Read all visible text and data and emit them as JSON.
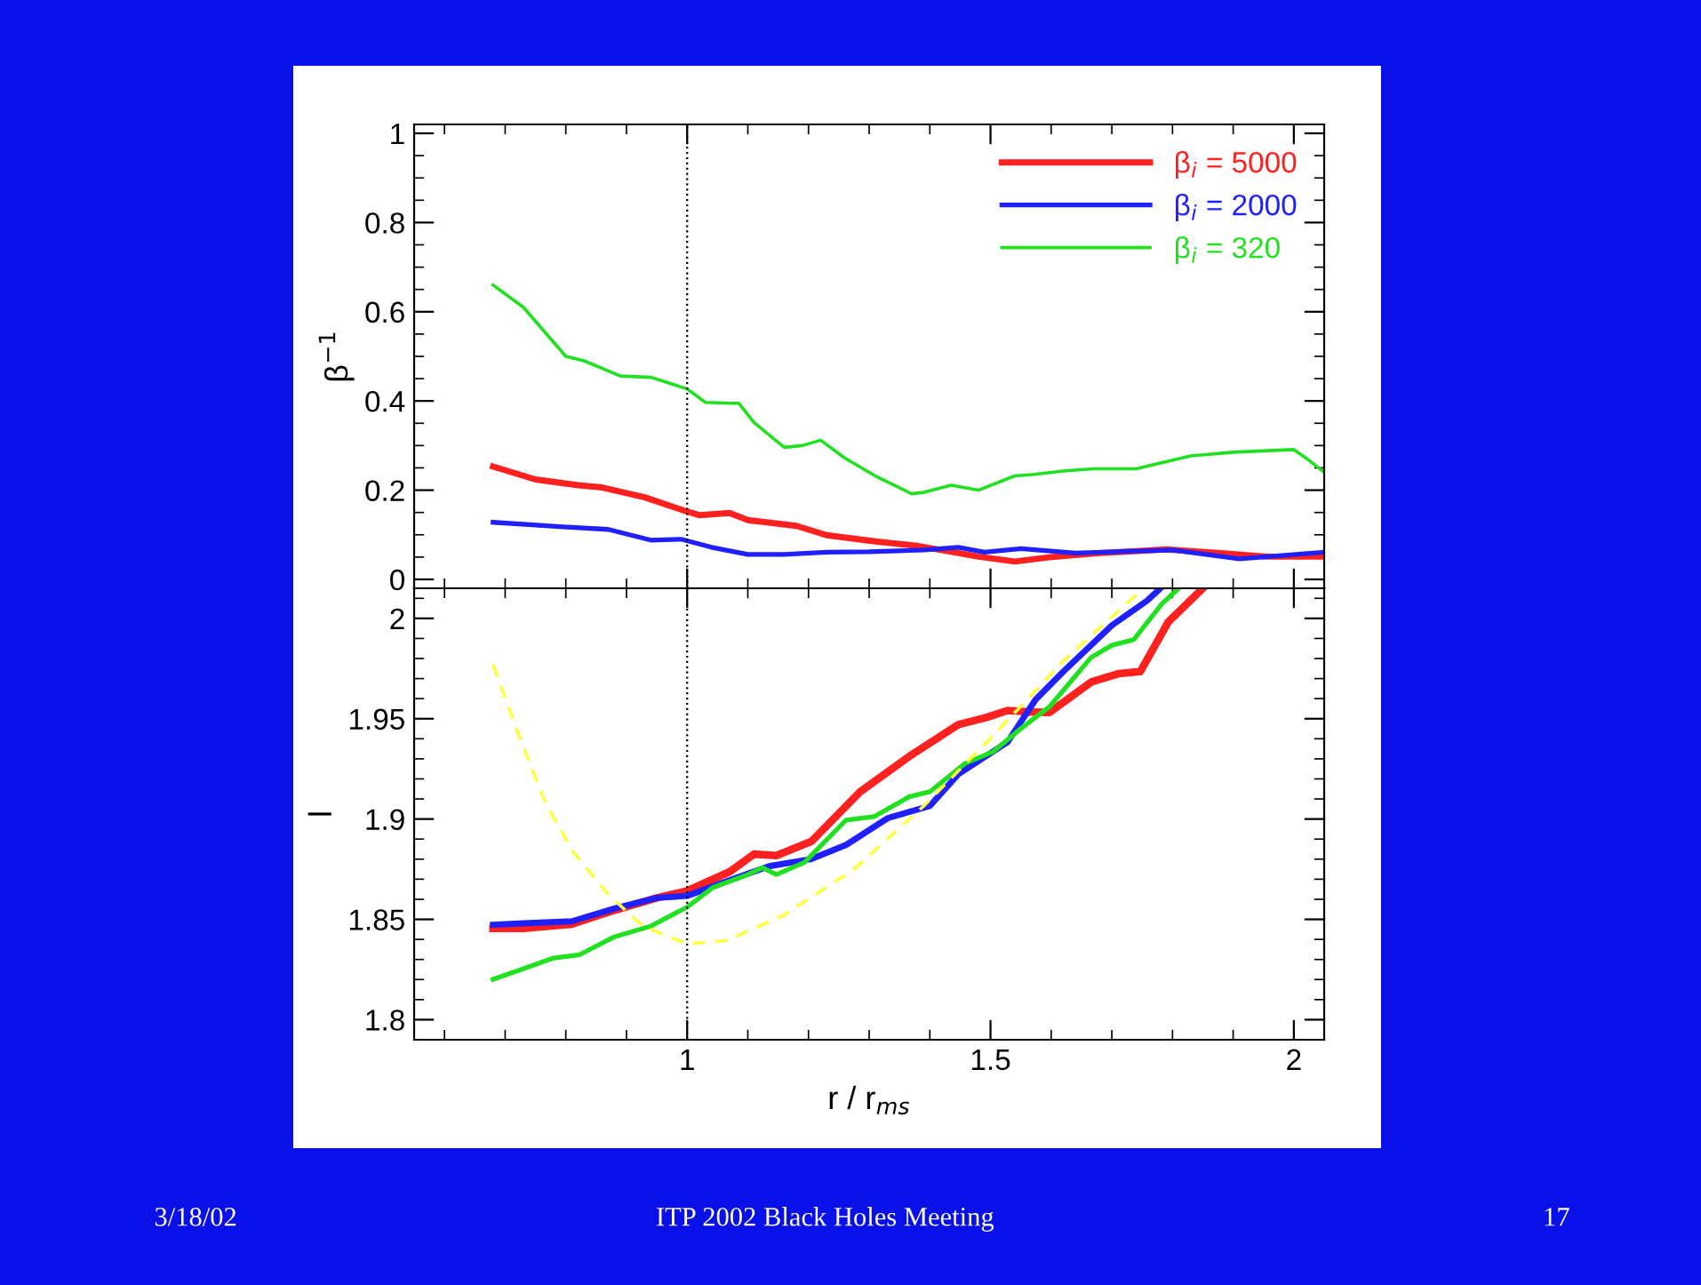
{
  "chart_data": [
    {
      "type": "line",
      "ylabel": "β$^{−1}$",
      "xlim": [
        0.55,
        2.05
      ],
      "xticks": [
        1,
        1.5,
        2
      ],
      "ylim": [
        -0.02,
        1.02
      ],
      "yticks": [
        0,
        0.2,
        0.4,
        0.6,
        0.8,
        1
      ],
      "tick_labels": "y",
      "legend": "top right",
      "grid": false,
      "ref_lines": [
        {
          "axis": "x",
          "value": 1,
          "color": "#000000",
          "line_style": "dotted"
        }
      ],
      "series": [
        {
          "name": "β$_{i}$ = 5000",
          "color": "#ff2020",
          "x": [
            0.68,
            0.75,
            0.82,
            0.86,
            0.93,
            1.0,
            1.02,
            1.07,
            1.1,
            1.18,
            1.23,
            1.31,
            1.38,
            1.435,
            1.48,
            1.54,
            1.6,
            1.68,
            1.79,
            1.89,
            1.955,
            2.05
          ],
          "values": [
            0.253,
            0.224,
            0.211,
            0.206,
            0.184,
            0.152,
            0.144,
            0.149,
            0.133,
            0.12,
            0.099,
            0.085,
            0.075,
            0.062,
            0.051,
            0.04,
            0.05,
            0.059,
            0.067,
            0.058,
            0.051,
            0.051
          ]
        },
        {
          "name": "β$_{i}$ = 2000",
          "color": "#2020ff",
          "x": [
            0.68,
            0.79,
            0.87,
            0.94,
            0.99,
            1.04,
            1.1,
            1.16,
            1.23,
            1.3,
            1.39,
            1.447,
            1.49,
            1.55,
            1.64,
            1.8,
            1.91,
            2.05
          ],
          "values": [
            0.128,
            0.118,
            0.112,
            0.088,
            0.09,
            0.072,
            0.056,
            0.056,
            0.061,
            0.062,
            0.066,
            0.072,
            0.061,
            0.069,
            0.059,
            0.066,
            0.046,
            0.061
          ]
        },
        {
          "name": "β$_{i}$ = 320",
          "color": "#20e020",
          "x": [
            0.68,
            0.73,
            0.8,
            0.83,
            0.89,
            0.94,
            1.0,
            1.03,
            1.07,
            1.085,
            1.11,
            1.16,
            1.19,
            1.22,
            1.26,
            1.31,
            1.37,
            1.39,
            1.435,
            1.48,
            1.54,
            1.57,
            1.62,
            1.67,
            1.74,
            1.83,
            1.9,
            2.0,
            2.02,
            2.05
          ],
          "values": [
            0.66,
            0.61,
            0.5,
            0.49,
            0.456,
            0.453,
            0.427,
            0.397,
            0.395,
            0.395,
            0.352,
            0.296,
            0.3,
            0.312,
            0.272,
            0.232,
            0.192,
            0.195,
            0.211,
            0.2,
            0.232,
            0.235,
            0.243,
            0.248,
            0.248,
            0.277,
            0.285,
            0.291,
            0.272,
            0.24
          ]
        }
      ]
    },
    {
      "type": "line",
      "xlabel": "r / r$_{ms}$",
      "ylabel": "l",
      "xlim": [
        0.55,
        2.05
      ],
      "xticks": [
        1,
        1.5,
        2
      ],
      "ylim": [
        1.79,
        2.015
      ],
      "yticks": [
        1.8,
        1.85,
        1.9,
        1.95,
        2
      ],
      "grid": false,
      "ref_lines": [
        {
          "axis": "x",
          "value": 1,
          "color": "#000000",
          "line_style": "dotted"
        }
      ],
      "annotations": [
        "3/18/02",
        "ITP 2002 Black Holes Meeting",
        "17"
      ],
      "series": [
        {
          "color": "#ff2020",
          "x": [
            0.68,
            0.73,
            0.81,
            0.87,
            0.95,
            1.0,
            1.07,
            1.11,
            1.147,
            1.205,
            1.285,
            1.366,
            1.447,
            1.493,
            1.528,
            1.562,
            1.597,
            1.666,
            1.712,
            1.747,
            1.793,
            1.85
          ],
          "values": [
            1.8455,
            1.8455,
            1.8476,
            1.8536,
            1.8607,
            1.8642,
            1.8737,
            1.8825,
            1.8818,
            1.8889,
            1.9136,
            1.9312,
            1.9471,
            1.9506,
            1.9541,
            1.9534,
            1.9531,
            1.9683,
            1.9725,
            1.9735,
            1.9982,
            2.015
          ]
        },
        {
          "color": "#2020ff",
          "x": [
            0.68,
            0.73,
            0.81,
            0.88,
            0.95,
            1.0,
            1.07,
            1.135,
            1.205,
            1.262,
            1.331,
            1.4,
            1.447,
            1.528,
            1.574,
            1.62,
            1.7,
            1.758,
            1.78
          ],
          "values": [
            1.8473,
            1.848,
            1.849,
            1.8554,
            1.8607,
            1.8617,
            1.8695,
            1.8765,
            1.8801,
            1.8871,
            1.9005,
            1.9065,
            1.9224,
            1.9383,
            1.9594,
            1.9735,
            1.9965,
            2.0088,
            2.015
          ]
        },
        {
          "color": "#20e020",
          "x": [
            0.68,
            0.72,
            0.78,
            0.823,
            0.88,
            0.94,
            1.0,
            1.043,
            1.1,
            1.124,
            1.147,
            1.193,
            1.262,
            1.308,
            1.366,
            1.4,
            1.458,
            1.505,
            1.551,
            1.597,
            1.666,
            1.7,
            1.736,
            1.782,
            1.81
          ],
          "values": [
            1.8201,
            1.8243,
            1.8307,
            1.8324,
            1.8413,
            1.8466,
            1.8561,
            1.866,
            1.8723,
            1.8758,
            1.8723,
            1.8783,
            1.8995,
            1.9012,
            1.9111,
            1.9136,
            1.9277,
            1.9337,
            1.9453,
            1.9559,
            1.9806,
            1.9866,
            1.9894,
            2.0071,
            2.015
          ]
        },
        {
          "color": "#ffff40",
          "line_style": "dashed",
          "x": [
            0.68,
            0.72,
            0.766,
            0.812,
            0.87,
            0.927,
            1.0,
            1.066,
            1.158,
            1.274,
            1.39,
            1.505,
            1.62,
            1.736,
            1.75
          ],
          "values": [
            1.977,
            1.9436,
            1.9083,
            1.8836,
            1.8624,
            1.8466,
            1.8377,
            1.8395,
            1.8519,
            1.8748,
            1.9065,
            1.9418,
            1.9788,
            2.0106,
            2.015
          ]
        }
      ]
    }
  ]
}
